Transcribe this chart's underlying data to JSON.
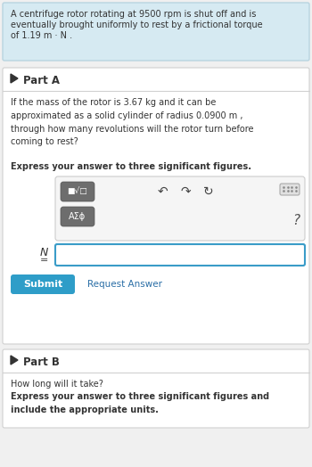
{
  "bg_color": "#f0f0f0",
  "header_bg": "#d6eaf2",
  "header_border": "#b8d4e0",
  "header_text_line1": "A centrifuge rotor rotating at 9500 rpm is shut off and is",
  "header_text_line2": "eventually brought uniformly to rest by a frictional torque",
  "header_text_line3": "of 1.19 m · N .",
  "section_bg": "#ffffff",
  "section_border": "#d0d0d0",
  "part_a_label": "Part A",
  "part_a_body": "If the mass of the rotor is 3.67 kg and it can be\napproximated as a solid cylinder of radius 0.0900 m ,\nthrough how many revolutions will the rotor turn before\ncoming to rest?",
  "express_bold_a": "Express your answer to three significant figures.",
  "toolbar_bg": "#f5f5f5",
  "toolbar_border": "#cccccc",
  "btn_bg": "#6d6d6d",
  "btn_text_1": "■√□",
  "btn_text_2": "AΣϕ",
  "input_border": "#3a9cc8",
  "input_bg": "#ffffff",
  "submit_bg": "#2e9dc8",
  "submit_text": "Submit",
  "request_text": "Request Answer",
  "request_color": "#2a6ea6",
  "part_b_label": "Part B",
  "part_b_body": "How long will it take?",
  "express_bold_b": "Express your answer to three significant figures and\ninclude the appropriate units.",
  "text_color": "#333333",
  "gray_text": "#666666"
}
